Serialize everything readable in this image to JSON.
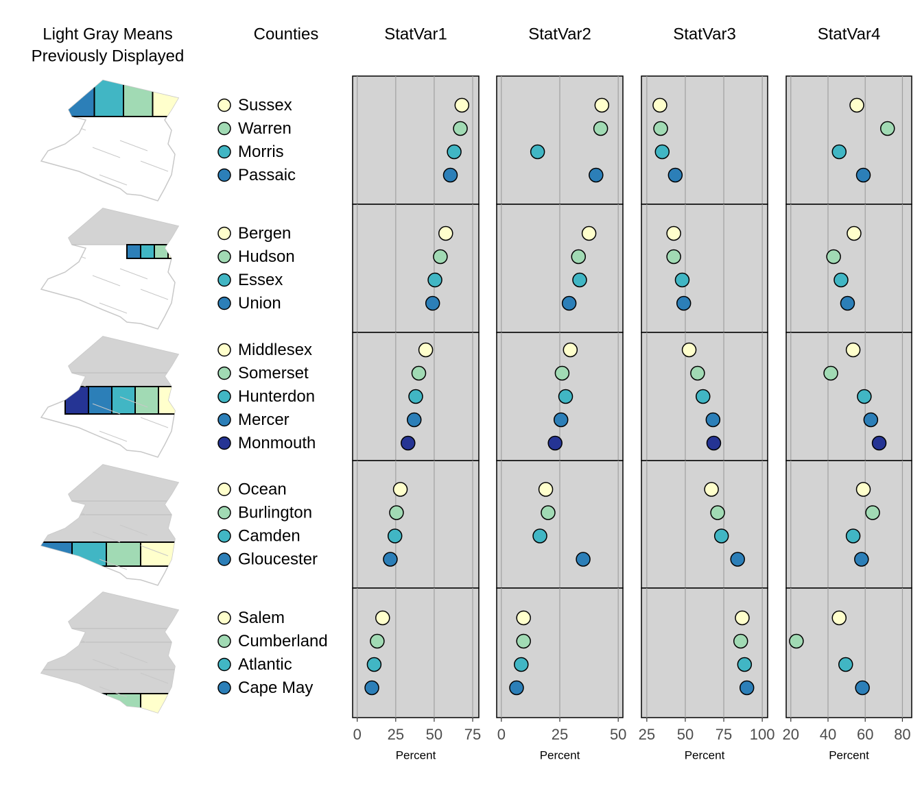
{
  "chart_data": {
    "type": "micromap",
    "map_title": [
      "Light Gray Means",
      "Previously Displayed"
    ],
    "label_title": "Counties",
    "colors": [
      "#ffffcc",
      "#a1dab4",
      "#41b6c4",
      "#2c7fb8",
      "#253494"
    ],
    "groups": [
      {
        "categories": [
          "Sussex",
          "Warren",
          "Morris",
          "Passaic"
        ]
      },
      {
        "categories": [
          "Bergen",
          "Hudson",
          "Essex",
          "Union"
        ]
      },
      {
        "categories": [
          "Middlesex",
          "Somerset",
          "Hunterdon",
          "Mercer",
          "Monmouth"
        ]
      },
      {
        "categories": [
          "Ocean",
          "Burlington",
          "Camden",
          "Gloucester"
        ]
      },
      {
        "categories": [
          "Salem",
          "Cumberland",
          "Atlantic",
          "Cape May"
        ]
      }
    ],
    "panels": [
      {
        "title": "StatVar1",
        "xlabel": "Percent",
        "xlim": [
          -3,
          79
        ],
        "xticks": [
          0,
          25,
          50,
          75
        ],
        "values": [
          [
            68,
            67,
            63,
            60.5
          ],
          [
            57.5,
            54,
            50.5,
            49
          ],
          [
            44.5,
            40,
            38,
            37,
            33
          ],
          [
            28,
            25.5,
            24.5,
            21.5
          ],
          [
            16.5,
            13,
            11,
            9.5
          ]
        ]
      },
      {
        "title": "StatVar2",
        "xlabel": "Percent",
        "xlim": [
          -2,
          52
        ],
        "xticks": [
          0,
          25,
          50
        ],
        "values": [
          [
            43,
            42.5,
            15.5,
            40.5
          ],
          [
            37.5,
            33,
            33.5,
            29
          ],
          [
            29.5,
            26,
            27.5,
            25.5,
            23
          ],
          [
            19,
            20,
            16.5,
            35
          ],
          [
            9.5,
            9.5,
            8.5,
            6.5
          ]
        ]
      },
      {
        "title": "StatVar3",
        "xlabel": "Percent",
        "xlim": [
          21.5,
          103.5
        ],
        "xticks": [
          25,
          50,
          75,
          100
        ],
        "values": [
          [
            33.5,
            34,
            35,
            43.5
          ],
          [
            42.5,
            42.5,
            48,
            49
          ],
          [
            52.5,
            58,
            61.5,
            68,
            68.5
          ],
          [
            67,
            71,
            73.5,
            84
          ],
          [
            87,
            86,
            88.5,
            90
          ]
        ]
      },
      {
        "title": "StatVar4",
        "xlabel": "Percent",
        "xlim": [
          17.5,
          85
        ],
        "xticks": [
          20,
          40,
          60,
          80
        ],
        "values": [
          [
            55.5,
            72,
            46,
            59
          ],
          [
            54,
            43,
            47,
            50.5
          ],
          [
            53.5,
            41.5,
            59.5,
            63,
            67.5
          ],
          [
            59,
            64,
            53.5,
            58
          ],
          [
            46,
            23,
            49.5,
            58.5
          ]
        ]
      }
    ]
  }
}
